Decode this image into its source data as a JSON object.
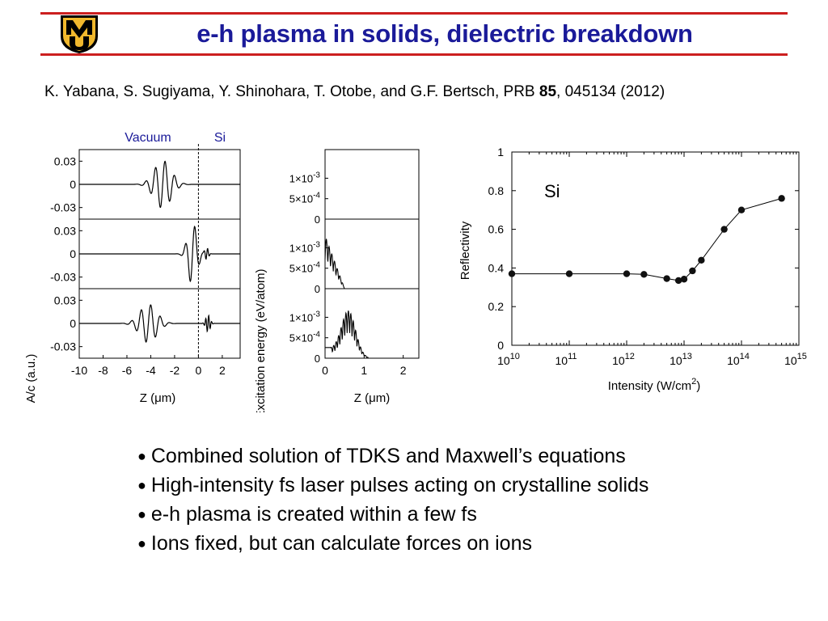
{
  "slide": {
    "title": "e-h plasma in solids, dielectric breakdown",
    "logo_text": "MU",
    "accent_color": "#cc1f1f",
    "title_color": "#1a1a99",
    "logo_colors": {
      "gold": "#f1b82d",
      "black": "#000000"
    }
  },
  "citation": {
    "authors": "K. Yabana, S. Sugiyama, Y. Shinohara, T. Otobe, and G.F. Bertsch, PRB ",
    "volume": "85",
    "rest": ", 045134 (2012)"
  },
  "bullets": [
    "Combined solution of TDKS and Maxwell’s equations",
    "High-intensity fs laser pulses acting on crystalline solids",
    "e-h plasma is created within a few fs",
    "Ions fixed, but can calculate forces on ions"
  ],
  "chart_data": [
    {
      "type": "line",
      "ylabel": "A/c (a.u.)",
      "xlabel": "Z (μm)",
      "region_labels": [
        "Vacuum",
        "Si"
      ],
      "region_label_color": "#1a1a99",
      "xticks": [
        "-10",
        "-8",
        "-6",
        "-4",
        "-2",
        "0",
        "2"
      ],
      "yticks": [
        "0.03",
        "0",
        "-0.03"
      ],
      "xlim": [
        -10,
        3.5
      ],
      "ylim": [
        -0.045,
        0.045
      ],
      "panels": 3,
      "series": [
        {
          "panel": 0,
          "pulses": [
            {
              "center": -3.0,
              "amp": 0.031,
              "width": 1.0,
              "period": 0.8
            }
          ]
        },
        {
          "panel": 1,
          "pulses": [
            {
              "center": -0.5,
              "amp": 0.04,
              "width": 0.55,
              "period": 0.8
            },
            {
              "center": 0.7,
              "amp": 0.008,
              "width": 0.2,
              "period": 0.3
            }
          ]
        },
        {
          "panel": 2,
          "pulses": [
            {
              "center": -4.2,
              "amp": 0.025,
              "width": 1.0,
              "period": 0.8
            },
            {
              "center": 0.8,
              "amp": 0.011,
              "width": 0.25,
              "period": 0.25
            }
          ]
        }
      ]
    },
    {
      "type": "line",
      "ylabel": "Excitation energy (eV/atom)",
      "xlabel": "Z (μm)",
      "xticks": [
        "0",
        "1",
        "2"
      ],
      "xlim": [
        0,
        2.4
      ],
      "ylim": [
        0,
        0.0017
      ],
      "ytick_labels": [
        {
          "base": "1×10",
          "exp": "-3"
        },
        {
          "base": "5×10",
          "exp": "-4"
        },
        {
          "base": "0",
          "exp": ""
        }
      ],
      "panels": 3,
      "series": [
        {
          "panel": 0,
          "shape": "flat",
          "peak": 0
        },
        {
          "panel": 1,
          "shape": "decay",
          "peak": 0.0013,
          "end": 0.5
        },
        {
          "panel": 2,
          "shape": "bump",
          "peak": 0.0013,
          "start": 0.15,
          "center": 0.6,
          "end": 1.1
        }
      ]
    },
    {
      "type": "scatter",
      "annotation": "Si",
      "ylabel": "Reflectivity",
      "xlabel": "Intensity (W/cm",
      "xlabel_sup": "2",
      "xlabel_end": ")",
      "xscale": "log",
      "xlim": [
        10000000000.0,
        1000000000000000.0
      ],
      "ylim": [
        0,
        1
      ],
      "yticks": [
        "0",
        "0.2",
        "0.4",
        "0.6",
        "0.8",
        "1"
      ],
      "xtick_exps": [
        "10",
        "11",
        "12",
        "13",
        "14",
        "15"
      ],
      "xtick_base": "10",
      "points": [
        {
          "x": 10000000000.0,
          "y": 0.37
        },
        {
          "x": 100000000000.0,
          "y": 0.37
        },
        {
          "x": 1000000000000.0,
          "y": 0.37
        },
        {
          "x": 2000000000000.0,
          "y": 0.367
        },
        {
          "x": 5000000000000.0,
          "y": 0.345
        },
        {
          "x": 8000000000000.0,
          "y": 0.335
        },
        {
          "x": 10000000000000.0,
          "y": 0.342
        },
        {
          "x": 14000000000000.0,
          "y": 0.385
        },
        {
          "x": 20000000000000.0,
          "y": 0.44
        },
        {
          "x": 50000000000000.0,
          "y": 0.6
        },
        {
          "x": 100000000000000.0,
          "y": 0.7
        },
        {
          "x": 500000000000000.0,
          "y": 0.76
        }
      ]
    }
  ]
}
